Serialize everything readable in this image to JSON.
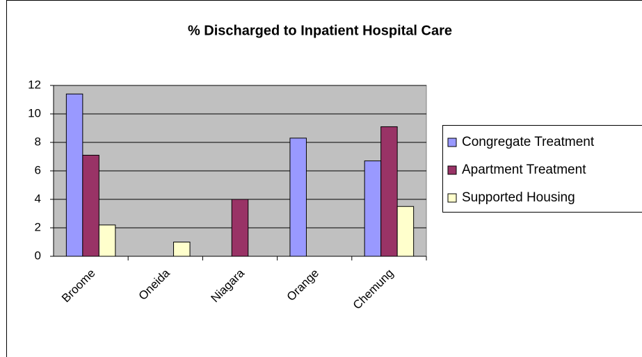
{
  "chart_data": {
    "type": "bar",
    "title": "% Discharged to Inpatient Hospital Care",
    "categories": [
      "Broome",
      "Oneida",
      "Niagara",
      "Orange",
      "Chemung"
    ],
    "series": [
      {
        "name": "Congregate Treatment",
        "color": "#9999ff",
        "values": [
          11.4,
          0,
          0,
          8.3,
          6.7
        ]
      },
      {
        "name": "Apartment Treatment",
        "color": "#993366",
        "values": [
          7.1,
          0,
          4.0,
          0,
          9.1
        ]
      },
      {
        "name": "Supported Housing",
        "color": "#ffffcc",
        "values": [
          2.2,
          1.0,
          0,
          0,
          3.5
        ]
      }
    ],
    "ylim": [
      0,
      12
    ],
    "yticks": [
      0,
      2,
      4,
      6,
      8,
      10,
      12
    ],
    "grid": true,
    "legend": "right"
  }
}
